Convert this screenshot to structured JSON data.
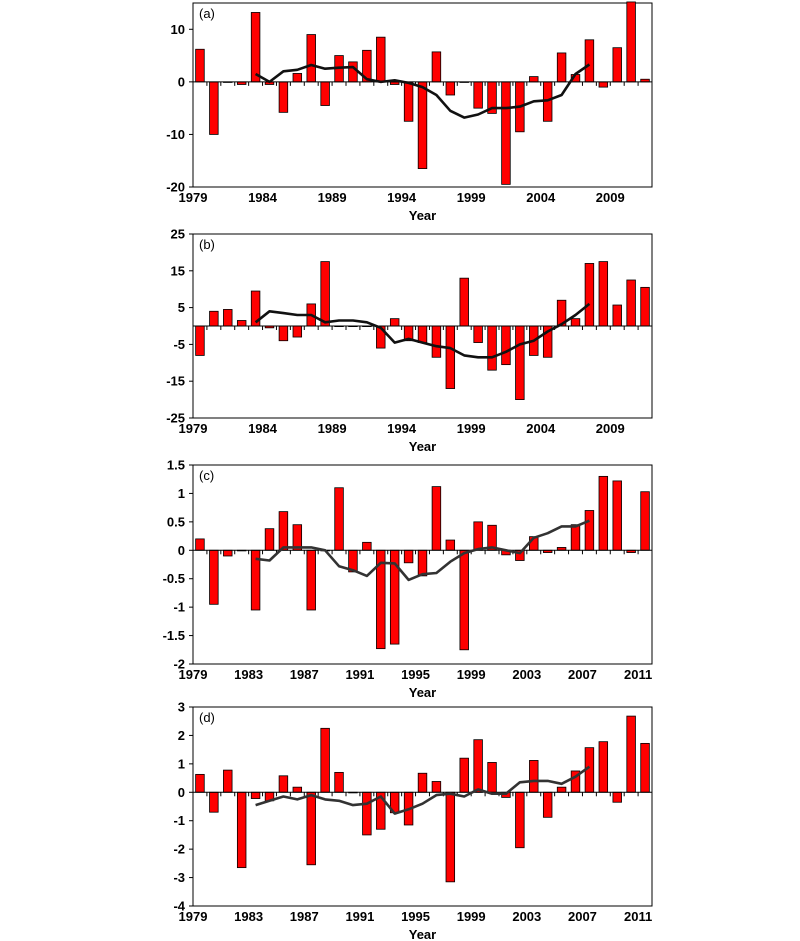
{
  "chart_data": [
    {
      "type": "bar",
      "panel_label": "(a)",
      "xlabel": "Year",
      "ylabel": "",
      "ylim": [
        -20,
        15
      ],
      "yticks": [
        -20,
        -10,
        0,
        10
      ],
      "xtick_labels": [
        "1979",
        "1984",
        "1989",
        "1994",
        "1999",
        "2004",
        "2009"
      ],
      "x": [
        1979,
        1980,
        1981,
        1982,
        1983,
        1984,
        1985,
        1986,
        1987,
        1988,
        1989,
        1990,
        1991,
        1992,
        1993,
        1994,
        1995,
        1996,
        1997,
        1998,
        1999,
        2000,
        2001,
        2002,
        2003,
        2004,
        2005,
        2006,
        2007,
        2008,
        2009,
        2010,
        2011
      ],
      "values": [
        6.2,
        -10,
        0,
        -0.5,
        13.2,
        -0.5,
        -5.8,
        1.6,
        9,
        -4.5,
        5,
        3.8,
        6,
        8.5,
        -0.5,
        -7.5,
        -16.5,
        5.7,
        -2.5,
        0,
        -5,
        -6,
        -19.5,
        -9.5,
        1,
        -7.5,
        5.5,
        1.4,
        8,
        -1,
        6.5,
        15.2,
        0.5
      ],
      "line": {
        "x": [
          1983,
          1984,
          1985,
          1986,
          1987,
          1988,
          1989,
          1990,
          1991,
          1992,
          1993,
          1994,
          1995,
          1996,
          1997,
          1998,
          1999,
          2000,
          2001,
          2002,
          2003,
          2004,
          2005,
          2006,
          2007
        ],
        "y": [
          1.5,
          0,
          2,
          2.3,
          3.2,
          2.5,
          2.7,
          2.8,
          0.5,
          0,
          0.3,
          -0.2,
          -1,
          -2.5,
          -5.5,
          -6.8,
          -6.2,
          -5,
          -5,
          -4.7,
          -3.7,
          -3.5,
          -2.5,
          1.5,
          3.3
        ]
      },
      "colors": {
        "bar": "#ff0000",
        "bar_edge": "#000000",
        "line": "#111111"
      }
    },
    {
      "type": "bar",
      "panel_label": "(b)",
      "xlabel": "Year",
      "ylabel": "",
      "ylim": [
        -25,
        25
      ],
      "yticks": [
        -25,
        -15,
        -5,
        5,
        15,
        25
      ],
      "xtick_labels": [
        "1979",
        "1984",
        "1989",
        "1994",
        "1999",
        "2004",
        "2009"
      ],
      "x": [
        1979,
        1980,
        1981,
        1982,
        1983,
        1984,
        1985,
        1986,
        1987,
        1988,
        1989,
        1990,
        1991,
        1992,
        1993,
        1994,
        1995,
        1996,
        1997,
        1998,
        1999,
        2000,
        2001,
        2002,
        2003,
        2004,
        2005,
        2006,
        2007,
        2008,
        2009,
        2010,
        2011
      ],
      "values": [
        -8,
        4,
        4.5,
        1.5,
        9.5,
        -0.5,
        -4,
        -3,
        6,
        17.5,
        0,
        0,
        0,
        -6,
        2,
        -4,
        -4.5,
        -8.5,
        -17,
        13,
        -4.5,
        -12,
        -10.5,
        -20,
        -8,
        -8.5,
        7,
        2,
        17,
        17.5,
        5.7,
        12.5,
        10.5
      ],
      "line": {
        "x": [
          1983,
          1984,
          1985,
          1986,
          1987,
          1988,
          1989,
          1990,
          1991,
          1992,
          1993,
          1994,
          1995,
          1996,
          1997,
          1998,
          1999,
          2000,
          2001,
          2002,
          2003,
          2004,
          2005,
          2006,
          2007
        ],
        "y": [
          1,
          4,
          3.5,
          3,
          3,
          1,
          1.5,
          1.5,
          1,
          -0.5,
          -4.5,
          -3.5,
          -4.5,
          -5.5,
          -6,
          -8,
          -8.5,
          -8.5,
          -7,
          -5,
          -4,
          -1.5,
          0.5,
          3,
          6
        ]
      },
      "colors": {
        "bar": "#ff0000",
        "bar_edge": "#000000",
        "line": "#111111"
      }
    },
    {
      "type": "bar",
      "panel_label": "(c)",
      "xlabel": "Year",
      "ylabel": "",
      "ylim": [
        -2,
        1.5
      ],
      "yticks": [
        -2,
        -1.5,
        -1,
        -0.5,
        0,
        0.5,
        1,
        1.5
      ],
      "xtick_labels": [
        "1979",
        "1983",
        "1987",
        "1991",
        "1995",
        "1999",
        "2003",
        "2007",
        "2011"
      ],
      "x": [
        1979,
        1980,
        1981,
        1982,
        1983,
        1984,
        1985,
        1986,
        1987,
        1988,
        1989,
        1990,
        1991,
        1992,
        1993,
        1994,
        1995,
        1996,
        1997,
        1998,
        1999,
        2000,
        2001,
        2002,
        2003,
        2004,
        2005,
        2006,
        2007,
        2008,
        2009,
        2010,
        2011
      ],
      "values": [
        0.2,
        -0.95,
        -0.1,
        0,
        -1.05,
        0.38,
        0.68,
        0.45,
        -1.05,
        0,
        1.1,
        -0.38,
        0.14,
        -1.73,
        -1.65,
        -0.22,
        -0.45,
        1.12,
        0.18,
        -1.75,
        0.5,
        0.44,
        -0.08,
        -0.18,
        0.24,
        -0.04,
        0.05,
        0.45,
        0.7,
        1.3,
        1.22,
        -0.04,
        1.03
      ],
      "line": {
        "x": [
          1983,
          1984,
          1985,
          1986,
          1987,
          1988,
          1989,
          1990,
          1991,
          1992,
          1993,
          1994,
          1995,
          1996,
          1997,
          1998,
          1999,
          2000,
          2001,
          2002,
          2003,
          2004,
          2005,
          2006,
          2007
        ],
        "y": [
          -0.15,
          -0.18,
          0.05,
          0.05,
          0.05,
          0,
          -0.28,
          -0.35,
          -0.45,
          -0.22,
          -0.23,
          -0.52,
          -0.42,
          -0.4,
          -0.2,
          -0.05,
          0.02,
          0.05,
          0,
          -0.05,
          0.22,
          0.3,
          0.42,
          0.42,
          0.52
        ]
      },
      "colors": {
        "bar": "#ff0000",
        "bar_edge": "#000000",
        "line": "#333333"
      }
    },
    {
      "type": "bar",
      "panel_label": "(d)",
      "xlabel": "Year",
      "ylabel": "",
      "ylim": [
        -4,
        3
      ],
      "yticks": [
        -4,
        -3,
        -2,
        -1,
        0,
        1,
        2,
        3
      ],
      "xtick_labels": [
        "1979",
        "1983",
        "1987",
        "1991",
        "1995",
        "1999",
        "2003",
        "2007",
        "2011"
      ],
      "x": [
        1979,
        1980,
        1981,
        1982,
        1983,
        1984,
        1985,
        1986,
        1987,
        1988,
        1989,
        1990,
        1991,
        1992,
        1993,
        1994,
        1995,
        1996,
        1997,
        1998,
        1999,
        2000,
        2001,
        2002,
        2003,
        2004,
        2005,
        2006,
        2007,
        2008,
        2009,
        2010,
        2011
      ],
      "values": [
        0.63,
        -0.7,
        0.78,
        -2.65,
        -0.22,
        -0.3,
        0.58,
        0.18,
        -2.55,
        2.25,
        0.7,
        0,
        -1.5,
        -1.3,
        -0.72,
        -1.15,
        0.67,
        0.38,
        -3.15,
        1.2,
        1.85,
        1.05,
        -0.18,
        -1.95,
        1.12,
        -0.88,
        0.18,
        0.75,
        1.57,
        1.78,
        -0.35,
        2.68,
        1.72
      ],
      "line": {
        "x": [
          1983,
          1984,
          1985,
          1986,
          1987,
          1988,
          1989,
          1990,
          1991,
          1992,
          1993,
          1994,
          1995,
          1996,
          1997,
          1998,
          1999,
          2000,
          2001,
          2002,
          2003,
          2004,
          2005,
          2006,
          2007
        ],
        "y": [
          -0.45,
          -0.3,
          -0.15,
          -0.25,
          -0.1,
          -0.25,
          -0.3,
          -0.45,
          -0.4,
          -0.15,
          -0.75,
          -0.6,
          -0.4,
          -0.1,
          -0.05,
          -0.15,
          0.1,
          -0.05,
          -0.05,
          0.35,
          0.4,
          0.4,
          0.3,
          0.55,
          0.9
        ]
      },
      "colors": {
        "bar": "#ff0000",
        "bar_edge": "#000000",
        "line": "#333333"
      }
    }
  ]
}
